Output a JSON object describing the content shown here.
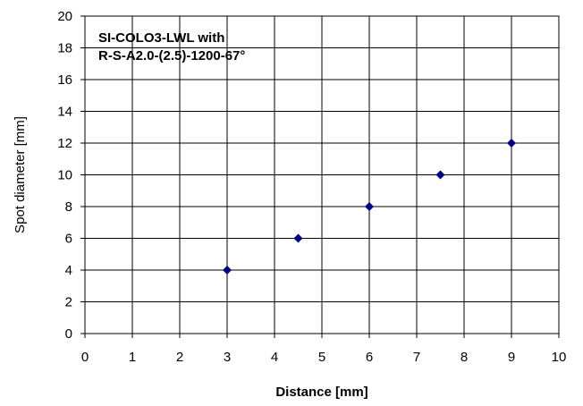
{
  "chart_data": {
    "type": "scatter",
    "xlabel": "Distance [mm]",
    "ylabel": "Spot diameter [mm]",
    "annotation_lines": [
      "SI-COLO3-LWL with",
      "R-S-A2.0-(2.5)-1200-67°"
    ],
    "xlim": [
      0,
      10
    ],
    "ylim": [
      0,
      20
    ],
    "x_ticks": [
      0,
      1,
      2,
      3,
      4,
      5,
      6,
      7,
      8,
      9,
      10
    ],
    "y_ticks": [
      0,
      2,
      4,
      6,
      8,
      10,
      12,
      14,
      16,
      18,
      20
    ],
    "grid": true,
    "legend": "none",
    "marker": "diamond",
    "marker_color": "#000080",
    "series": [
      {
        "x": [
          3,
          4.5,
          6,
          7.5,
          9
        ],
        "y": [
          4,
          6,
          8,
          10,
          12
        ]
      }
    ]
  }
}
